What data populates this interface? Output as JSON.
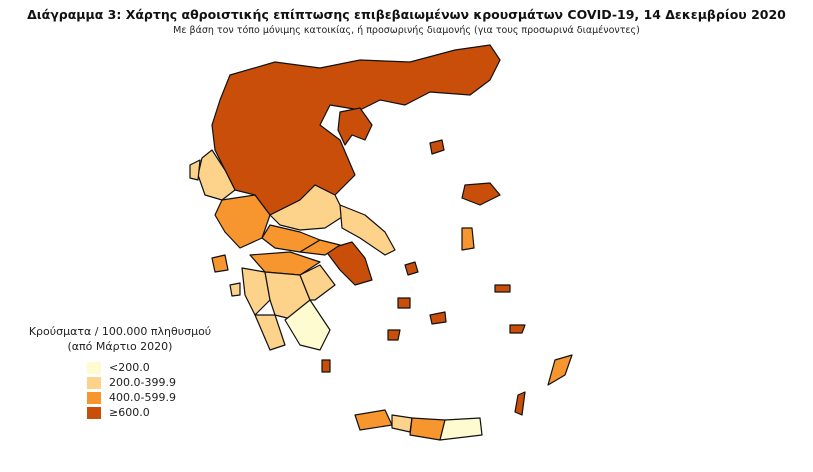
{
  "title": "Διάγραμμα 3: Χάρτης αθροιστικής επίπτωσης επιβεβαιωμένων κρουσμάτων COVID-19, 14 Δεκεμβρίου 2020",
  "subtitle": "Με βάση τον τόπο μόνιμης κατοικίας, ή προσωρινής διαμονής (για τους προσωρινά διαμένοντες)",
  "legend": {
    "title": "Κρούσματα / 100.000 πληθυσμού",
    "subtitle": "(από Μάρτιο 2020)",
    "classes": [
      {
        "label": "<200.0",
        "color": "#fefbd0"
      },
      {
        "label": "200.0-399.9",
        "color": "#fdd28a"
      },
      {
        "label": "400.0-599.9",
        "color": "#f7962e"
      },
      {
        "label": "≥600.0",
        "color": "#c94e0a"
      }
    ]
  }
}
